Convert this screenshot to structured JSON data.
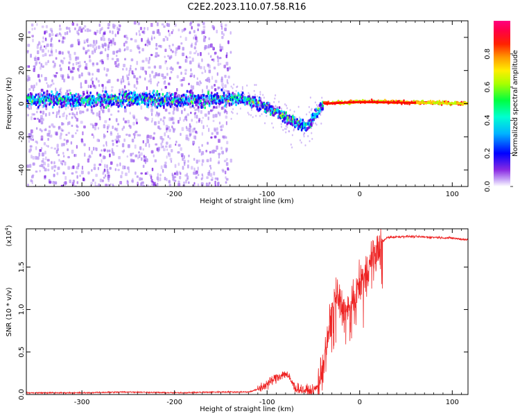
{
  "title": "C2E2.2023.110.07.58.R16",
  "chart_data": [
    {
      "type": "heatmap",
      "title": "C2E2.2023.110.07.58.R16",
      "xlabel": "Height of straight line (km)",
      "ylabel": "Frequency (Hz)",
      "xlim": [
        -360,
        117
      ],
      "ylim": [
        -50,
        50
      ],
      "x_ticks": [
        -300,
        -200,
        -100,
        0,
        100
      ],
      "x_tick_labels": [
        "-300",
        "-200",
        "-100",
        "0",
        "100"
      ],
      "y_ticks": [
        -40,
        -20,
        0,
        20,
        40
      ],
      "y_tick_labels": [
        "-40",
        "-20",
        "0",
        "20",
        "40"
      ],
      "colorbar": {
        "label": "Normalized spectral amplitude",
        "range": [
          0,
          1
        ],
        "ticks": [
          0.0,
          0.2,
          0.4,
          0.6,
          0.8
        ],
        "tick_labels": [
          "0.0",
          "0.2",
          "0.4",
          "0.6",
          "0.8"
        ],
        "colormap": [
          "#ffffff",
          "#a87cf0",
          "#6a00e0",
          "#0000ff",
          "#00d8ff",
          "#00ff66",
          "#b8ff00",
          "#ffcc00",
          "#ff6a00",
          "#ff0000",
          "#ff0080"
        ]
      },
      "ridge_center_hz": [
        [
          -360,
          3
        ],
        [
          -300,
          2
        ],
        [
          -250,
          3
        ],
        [
          -200,
          2
        ],
        [
          -150,
          3
        ],
        [
          -130,
          3
        ],
        [
          -110,
          0
        ],
        [
          -90,
          -5
        ],
        [
          -75,
          -10
        ],
        [
          -60,
          -14
        ],
        [
          -50,
          -8
        ],
        [
          -40,
          0
        ],
        [
          0,
          1
        ],
        [
          117,
          0
        ]
      ]
    },
    {
      "type": "line",
      "xlabel": "Height of straight line (km)",
      "ylabel": "SNR (10 * v/v)",
      "y_multiplier_label": "(x10",
      "y_multiplier_exp": "4",
      "y_multiplier_close": ")",
      "xlim": [
        -360,
        117
      ],
      "ylim": [
        0,
        1.95
      ],
      "x_ticks": [
        -300,
        -200,
        -100,
        0,
        100
      ],
      "x_tick_labels": [
        "-300",
        "-200",
        "-100",
        "0",
        "100"
      ],
      "y_ticks": [
        0.0,
        0.5,
        1.0,
        1.5
      ],
      "y_tick_labels": [
        "0.0",
        "0.5",
        "1.0",
        "1.5"
      ],
      "color": "#ee2222",
      "series": [
        {
          "name": "SNR",
          "x": [
            -360,
            -300,
            -250,
            -200,
            -150,
            -120,
            -110,
            -100,
            -90,
            -80,
            -75,
            -70,
            -60,
            -50,
            -45,
            -40,
            -35,
            -30,
            -25,
            -20,
            -15,
            -10,
            -5,
            0,
            10,
            20,
            25,
            30,
            50,
            80,
            100,
            117
          ],
          "y": [
            0.02,
            0.02,
            0.03,
            0.02,
            0.03,
            0.03,
            0.06,
            0.12,
            0.2,
            0.25,
            0.18,
            0.08,
            0.05,
            0.04,
            0.1,
            0.3,
            0.6,
            1.0,
            1.2,
            1.05,
            0.95,
            1.0,
            1.1,
            1.3,
            1.5,
            1.7,
            1.8,
            1.85,
            1.86,
            1.85,
            1.84,
            1.82
          ]
        }
      ]
    }
  ]
}
